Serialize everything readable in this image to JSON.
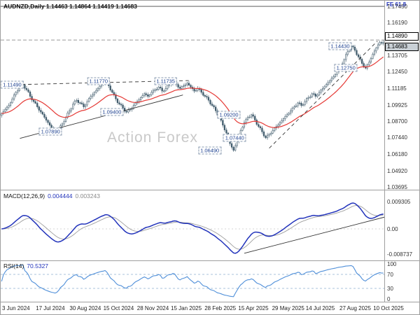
{
  "header": {
    "symbol_info": "AUDNZD,Daily 1.14463 1.14864 1.14419 1.14683",
    "fe_label": "FE 61.8",
    "watermark": "Action Forex"
  },
  "colors": {
    "candle": "#3f5a6b",
    "ma": "#e53935",
    "macd": "#2233bb",
    "signal": "#9e9e9e",
    "rsi": "#4f8fd9",
    "accent_blue": "#2233bb"
  },
  "indicators": {
    "macd_label": "MACD(12,26,9)",
    "macd_value": "0.004444",
    "macd_signal_value": "0.003243",
    "rsi_label": "RSI(14)",
    "rsi_value": "70.5327"
  },
  "price_axis": {
    "ticks": [
      "1.17450",
      "1.16190",
      "1.13705",
      "1.12450",
      "1.11185",
      "1.09925",
      "1.08700",
      "1.07440",
      "1.06180",
      "1.04920",
      "1.03695"
    ],
    "line_price": "1.14890",
    "current_price": "1.14683"
  },
  "macd_axis": {
    "ticks": [
      "0.009305",
      "0.00",
      "-0.008737"
    ]
  },
  "rsi_axis": {
    "ticks": [
      "100",
      "70",
      "30",
      "0"
    ]
  },
  "x_axis": {
    "labels": [
      "3 Jun 2024",
      "17 Jul 2024",
      "30 Aug 2024",
      "15 Oct 2024",
      "28 Nov 2024",
      "15 Jan 2025",
      "28 Feb 2025",
      "15 Apr 2025",
      "29 May 2025",
      "14 Jul 2025",
      "27 Aug 2025",
      "10 Oct 2025"
    ]
  },
  "chart_data": [
    {
      "type": "candlestick",
      "symbol": "AUDNZD",
      "timeframe": "Daily",
      "ohlc_current": {
        "open": 1.14463,
        "high": 1.14864,
        "low": 1.14419,
        "close": 1.14683
      },
      "ylim": [
        1.0349,
        1.1788
      ],
      "closes": [
        1.093,
        1.096,
        1.099,
        1.104,
        1.109,
        1.113,
        1.1149,
        1.111,
        1.106,
        1.102,
        1.098,
        1.094,
        1.09,
        1.086,
        1.082,
        1.0789,
        1.081,
        1.085,
        1.09,
        1.095,
        1.1,
        1.103,
        1.101,
        1.098,
        1.102,
        1.106,
        1.109,
        1.112,
        1.115,
        1.1177,
        1.114,
        1.109,
        1.104,
        1.1,
        1.097,
        1.094,
        1.096,
        1.099,
        1.102,
        1.105,
        1.108,
        1.106,
        1.109,
        1.111,
        1.113,
        1.11,
        1.112,
        1.115,
        1.1173,
        1.115,
        1.112,
        1.114,
        1.116,
        1.113,
        1.11,
        1.112,
        1.109,
        1.106,
        1.103,
        1.099,
        1.095,
        1.09,
        1.084,
        1.078,
        1.07,
        1.0649,
        1.072,
        1.08,
        1.086,
        1.09,
        1.092,
        1.088,
        1.083,
        1.079,
        1.0744,
        1.077,
        1.08,
        1.083,
        1.086,
        1.089,
        1.092,
        1.095,
        1.098,
        1.101,
        1.099,
        1.102,
        1.105,
        1.108,
        1.106,
        1.109,
        1.112,
        1.115,
        1.118,
        1.121,
        1.125,
        1.129,
        1.134,
        1.14,
        1.1443,
        1.141,
        1.136,
        1.131,
        1.1275,
        1.132,
        1.138,
        1.143,
        1.147,
        1.14683
      ],
      "overlays": {
        "ma_period": 24,
        "hlines": [
          {
            "value": 1.1745,
            "style": "solid",
            "label": "FE 61.8"
          },
          {
            "value": 1.1489,
            "style": "dashed",
            "label": "1.14890"
          }
        ],
        "trendlines": [
          {
            "x1": 0.05,
            "v1": 1.074,
            "x2": 0.475,
            "v2": 1.107,
            "style": "solid"
          },
          {
            "x1": 0.055,
            "v1": 1.115,
            "x2": 0.49,
            "v2": 1.118,
            "style": "dashed"
          },
          {
            "x1": 0.7,
            "v1": 1.0665,
            "x2": 0.982,
            "v2": 1.148,
            "style": "dashed"
          }
        ],
        "price_tags": [
          {
            "x": 0.03,
            "label": "1.11490",
            "value": 1.1149
          },
          {
            "x": 0.255,
            "label": "1.11770",
            "value": 1.1177
          },
          {
            "x": 0.43,
            "label": "1.11735",
            "value": 1.11735
          },
          {
            "x": 0.29,
            "label": "1.09400",
            "value": 1.094
          },
          {
            "x": 0.13,
            "label": "1.07890",
            "value": 1.0789
          },
          {
            "x": 0.595,
            "label": "1.09200",
            "value": 1.092
          },
          {
            "x": 0.61,
            "label": "1.07440",
            "value": 1.0744
          },
          {
            "x": 0.545,
            "label": "1.06490",
            "value": 1.0649
          },
          {
            "x": 0.885,
            "label": "1.14430",
            "value": 1.1443
          },
          {
            "x": 0.9,
            "label": "1.12750",
            "value": 1.1275
          }
        ]
      }
    },
    {
      "type": "line",
      "name": "MACD",
      "params": "12,26,9",
      "derived_from": "closes",
      "current": 0.004444,
      "signal_current": 0.003243,
      "extremes": {
        "max": 0.009305,
        "min": -0.008737
      },
      "trendline": {
        "x1": 0.635,
        "v1": -0.0083,
        "x2": 1.0,
        "v2": 0.004
      }
    },
    {
      "type": "line",
      "name": "RSI",
      "period": 14,
      "derived_from": "closes",
      "current": 70.5327,
      "ylim": [
        0,
        100
      ],
      "levels": [
        70,
        30
      ]
    }
  ]
}
